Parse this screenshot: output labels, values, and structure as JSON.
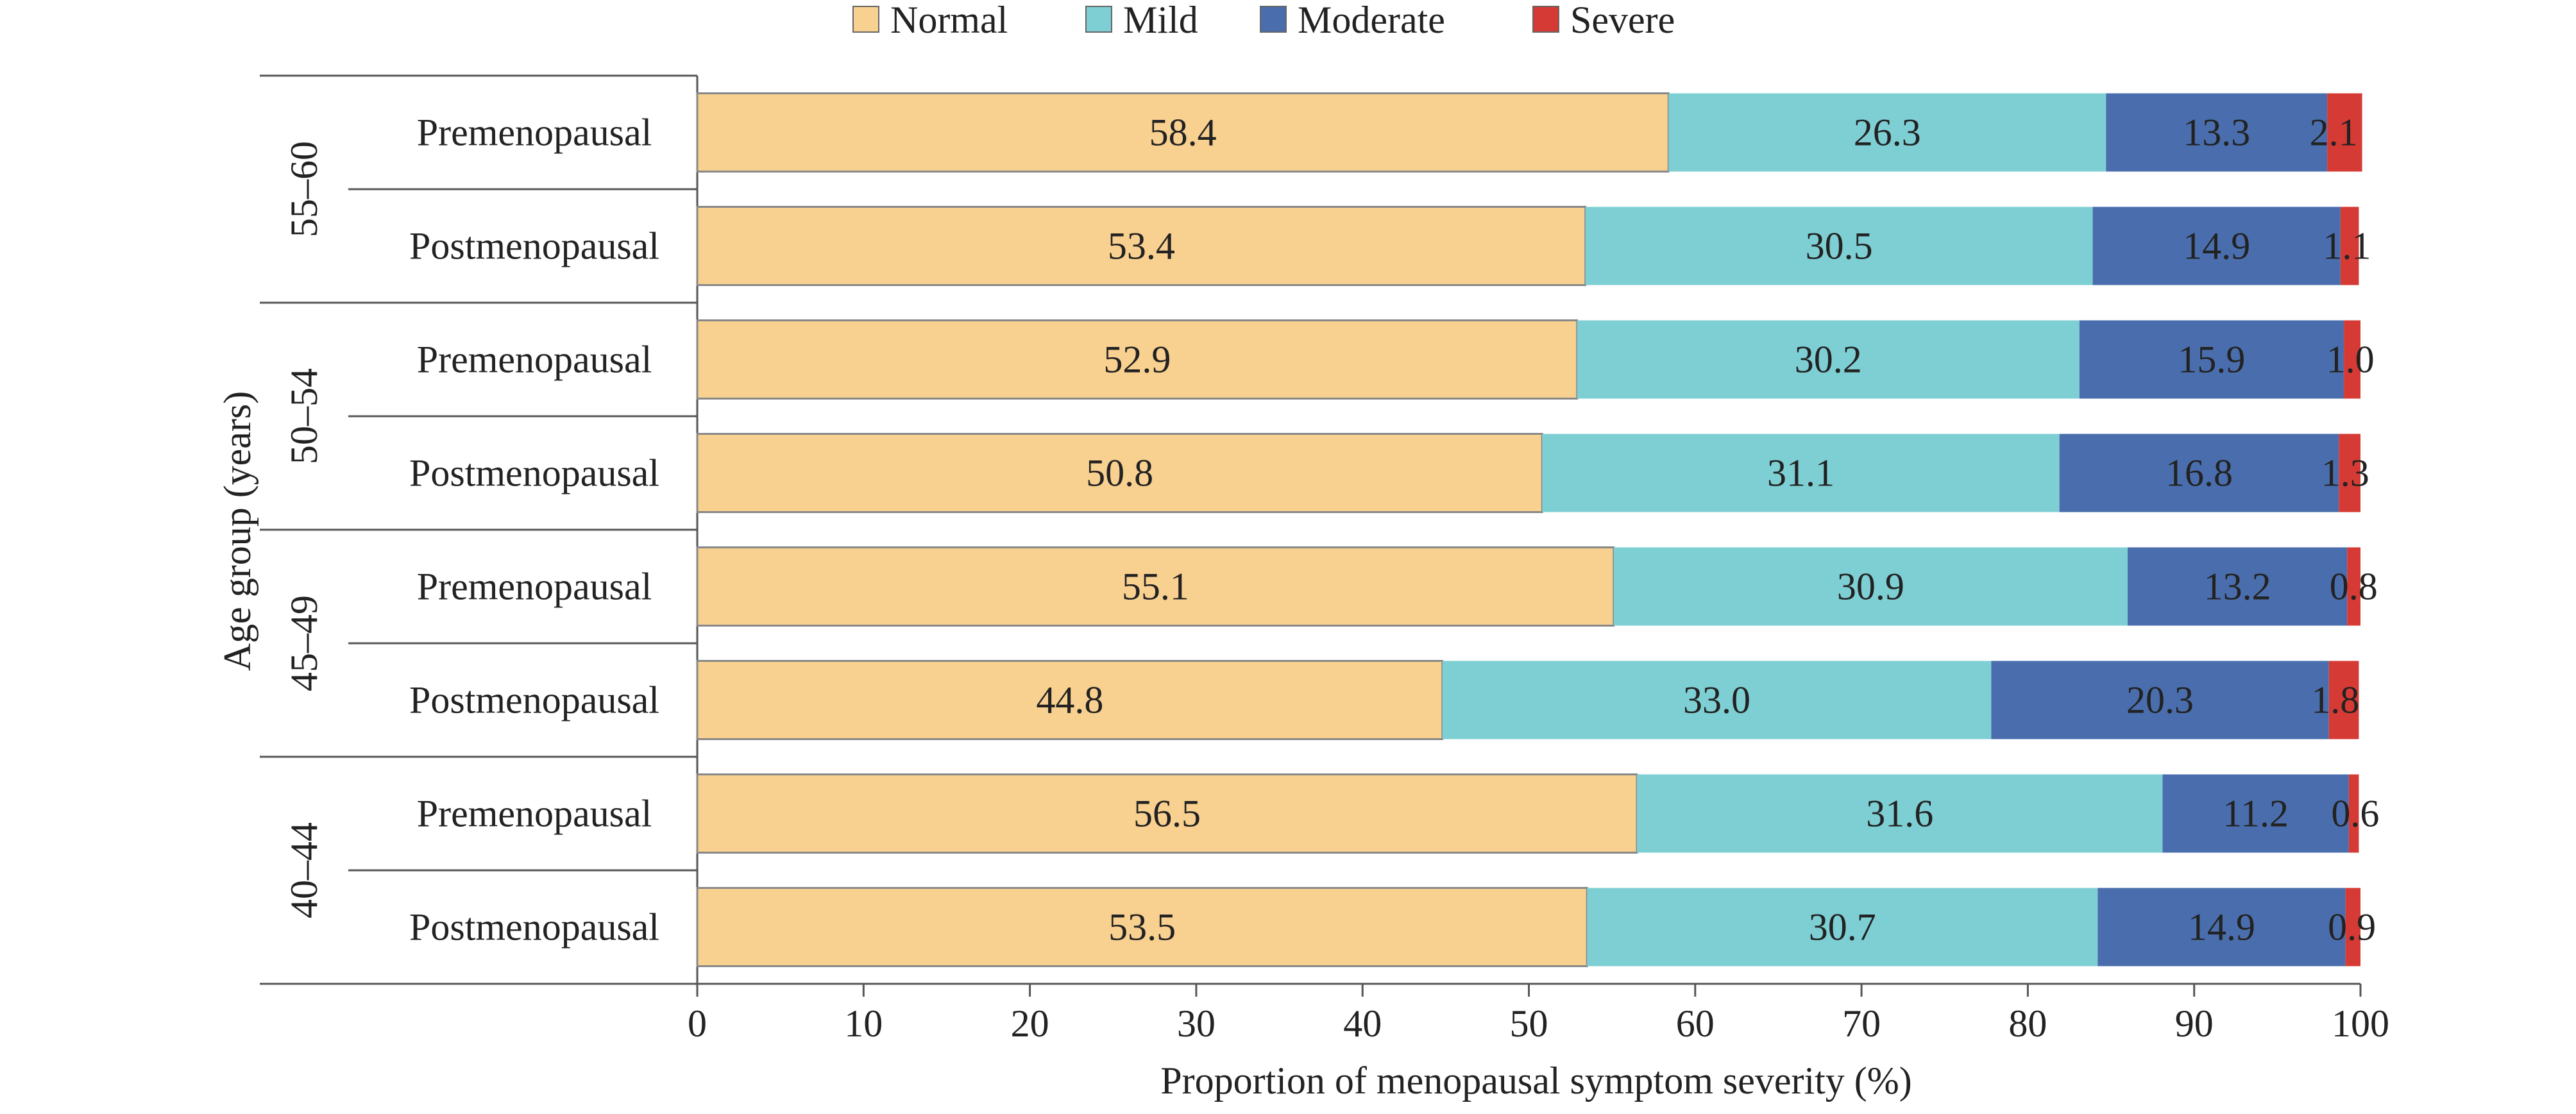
{
  "chart_data": {
    "type": "bar",
    "orientation": "horizontal",
    "stacked": true,
    "xlabel": "Proportion of menopausal symptom severity (%)",
    "ylabel": "Age group (years)",
    "xlim": [
      0,
      100
    ],
    "x_ticks": [
      "0",
      "10",
      "20",
      "30",
      "40",
      "50",
      "60",
      "70",
      "80",
      "90",
      "100"
    ],
    "legend_position": "top",
    "grid": false,
    "groups": [
      {
        "name": "55–60",
        "rows": [
          {
            "label": "Premenopausal",
            "values": [
              "58.4",
              "26.3",
              "13.3",
              "2.1"
            ]
          },
          {
            "label": "Postmenopausal",
            "values": [
              "53.4",
              "30.5",
              "14.9",
              "1.1"
            ]
          }
        ]
      },
      {
        "name": "50–54",
        "rows": [
          {
            "label": "Premenopausal",
            "values": [
              "52.9",
              "30.2",
              "15.9",
              "1.0"
            ]
          },
          {
            "label": "Postmenopausal",
            "values": [
              "50.8",
              "31.1",
              "16.8",
              "1.3"
            ]
          }
        ]
      },
      {
        "name": "45–49",
        "rows": [
          {
            "label": "Premenopausal",
            "values": [
              "55.1",
              "30.9",
              "13.2",
              "0.8"
            ]
          },
          {
            "label": "Postmenopausal",
            "values": [
              "44.8",
              "33.0",
              "20.3",
              "1.8"
            ]
          }
        ]
      },
      {
        "name": "40–44",
        "rows": [
          {
            "label": "Premenopausal",
            "values": [
              "56.5",
              "31.6",
              "11.2",
              "0.6"
            ]
          },
          {
            "label": "Postmenopausal",
            "values": [
              "53.5",
              "30.7",
              "14.9",
              "0.9"
            ]
          }
        ]
      }
    ],
    "series": [
      {
        "name": "Normal",
        "color": "#F8D090"
      },
      {
        "name": "Mild",
        "color": "#7ECFD4"
      },
      {
        "name": "Moderate",
        "color": "#4A6EAD"
      },
      {
        "name": "Severe",
        "color": "#D63A35"
      }
    ]
  }
}
